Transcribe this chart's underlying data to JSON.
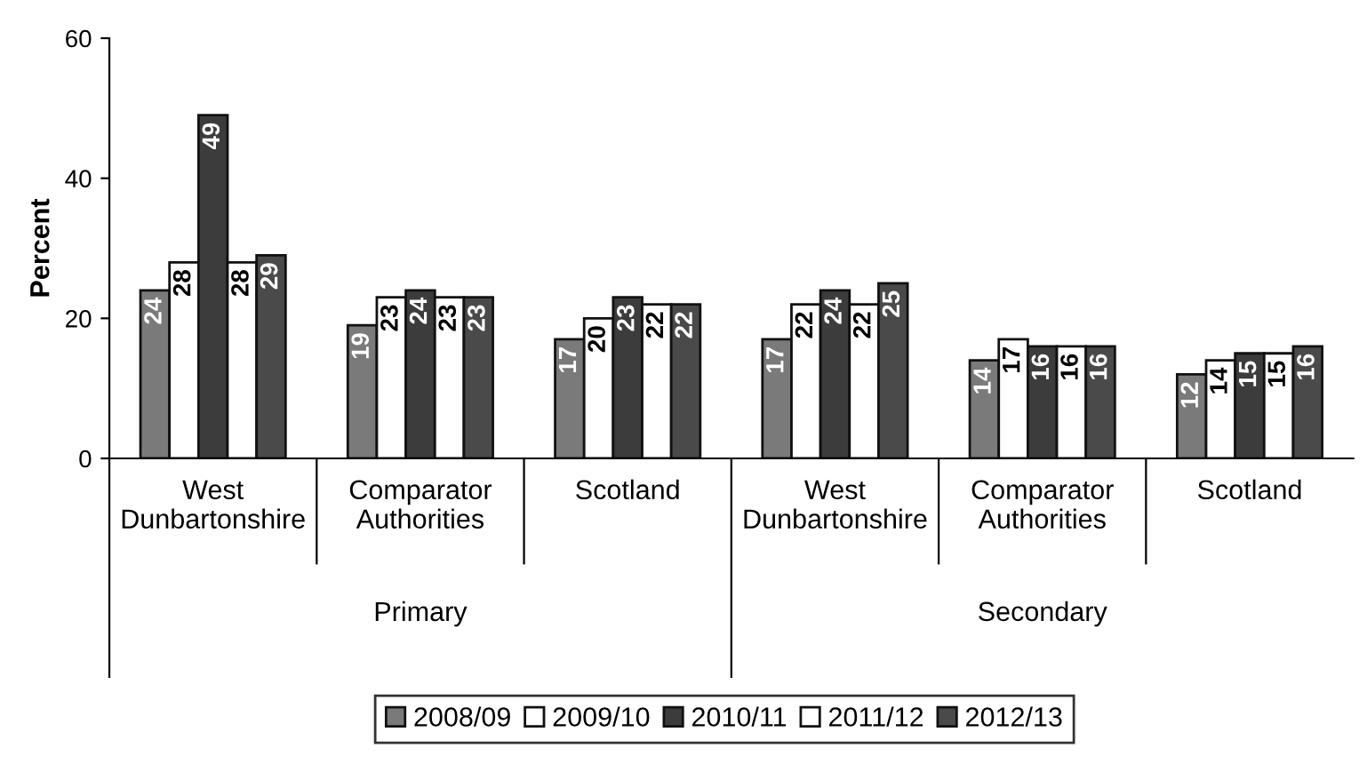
{
  "chart_data": {
    "type": "bar",
    "ylabel": "Percent",
    "categories": [
      "West\nDunbartonshire",
      "Comparator\nAuthorities",
      "Scotland",
      "West\nDunbartonshire",
      "Comparator\nAuthorities",
      "Scotland"
    ],
    "series": [
      {
        "name": "2008/09",
        "color": "#7a7a7a",
        "values": [
          24,
          19,
          17,
          17,
          14,
          12
        ]
      },
      {
        "name": "2009/10",
        "color": "#ffffff",
        "values": [
          28,
          23,
          20,
          22,
          17,
          14
        ]
      },
      {
        "name": "2010/11",
        "color": "#3c3c3c",
        "values": [
          49,
          24,
          23,
          24,
          16,
          15
        ]
      },
      {
        "name": "2011/12",
        "color": "#ffffff",
        "values": [
          28,
          23,
          22,
          22,
          16,
          15
        ]
      },
      {
        "name": "2012/13",
        "color": "#4a4a4a",
        "values": [
          29,
          23,
          22,
          25,
          16,
          16
        ]
      }
    ],
    "ylim": [
      0,
      60
    ],
    "yticks": [
      0,
      20,
      40,
      60
    ],
    "data_labels": true,
    "grid": false,
    "legend": "bottom",
    "annotations": [
      "Primary",
      "Secondary"
    ]
  }
}
